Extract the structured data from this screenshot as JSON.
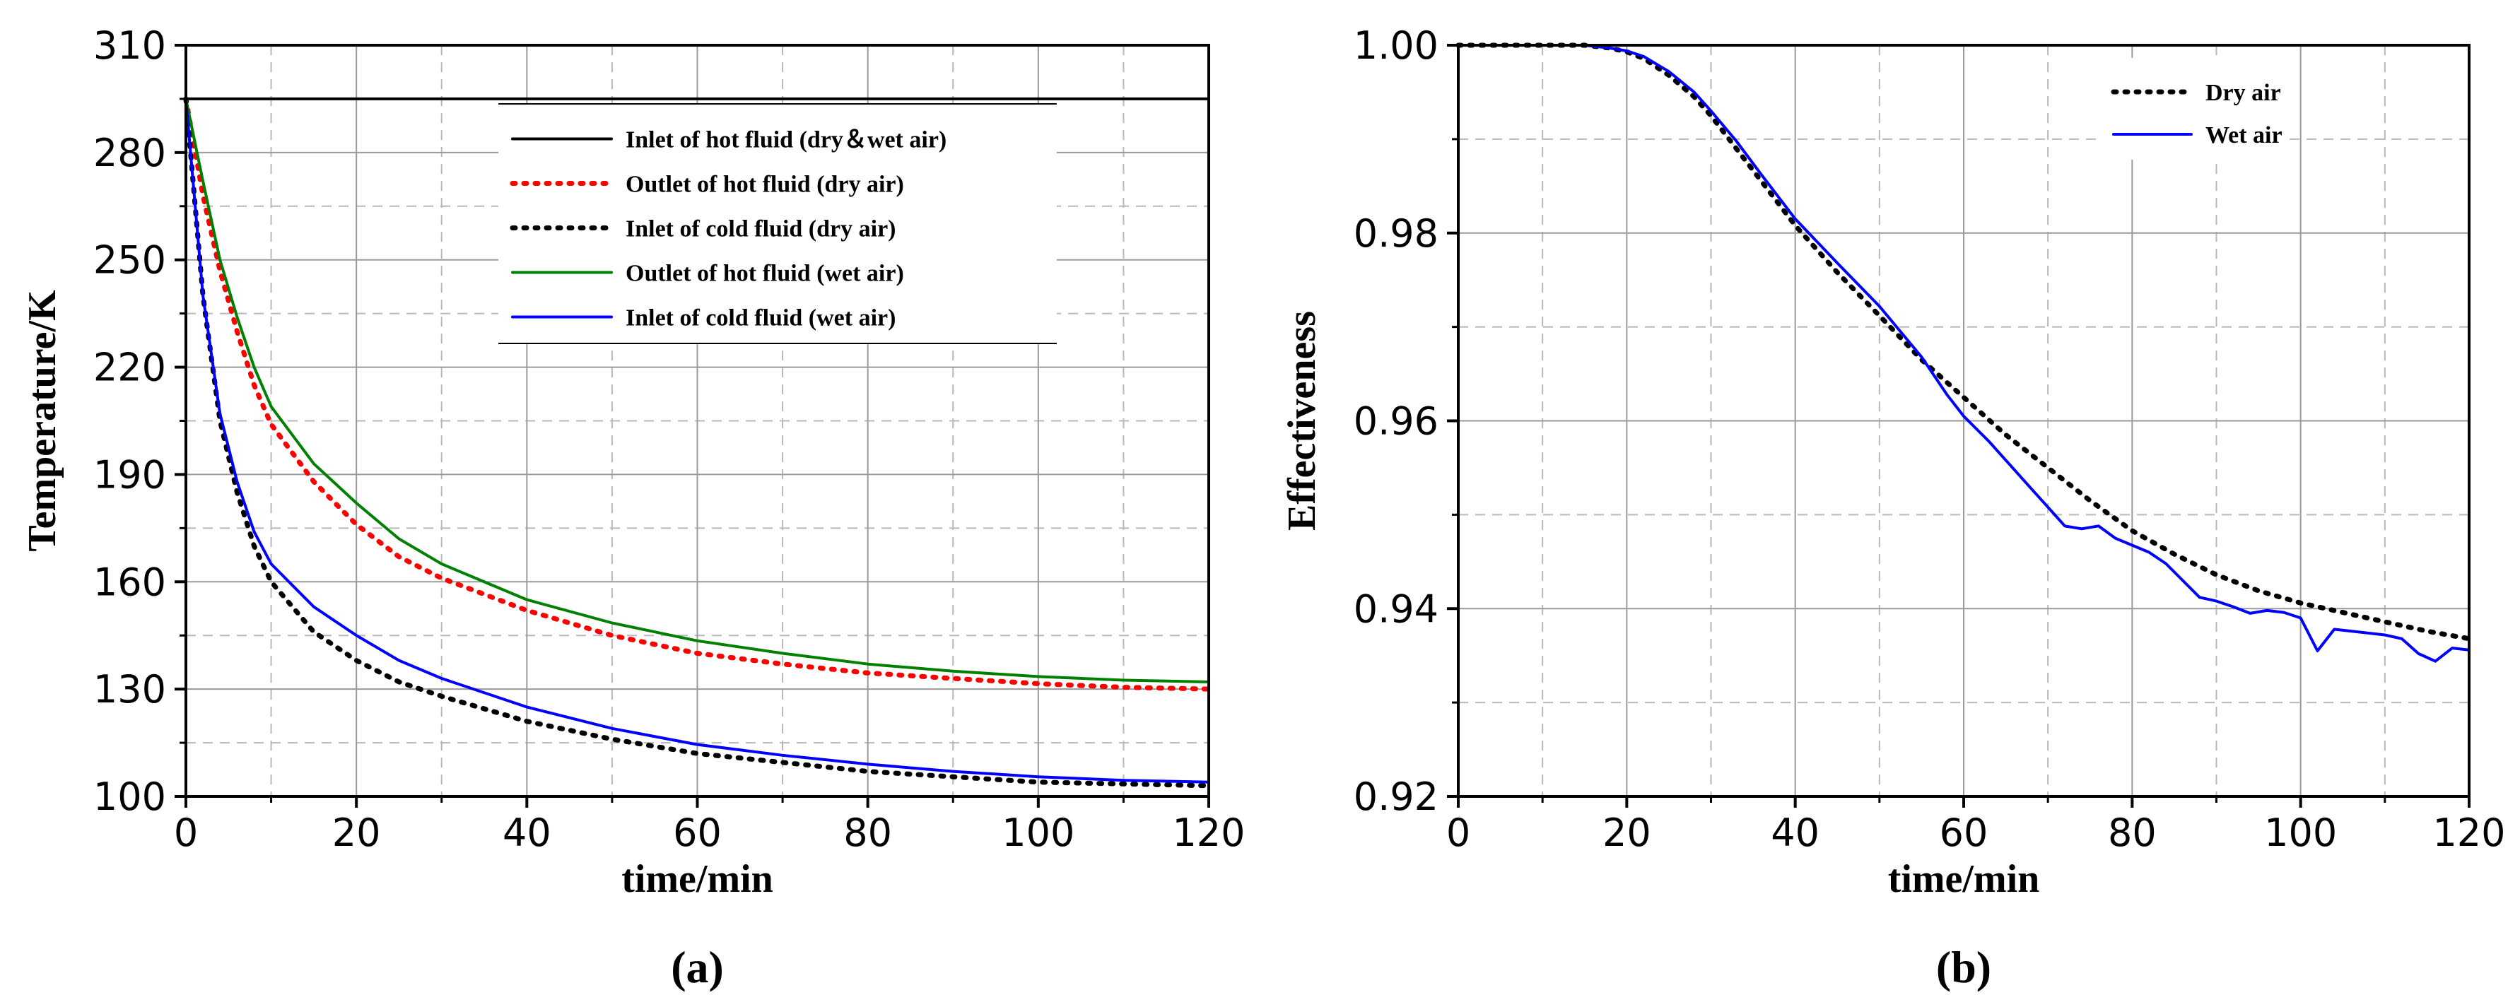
{
  "chart_data": [
    {
      "type": "line",
      "panel_label": "(a)",
      "xlabel": "time/min",
      "ylabel": "Temperature/K",
      "xlim": [
        0,
        120
      ],
      "ylim": [
        100,
        310
      ],
      "xticks": [
        0,
        20,
        40,
        60,
        80,
        100,
        120
      ],
      "yticks": [
        100,
        130,
        160,
        190,
        220,
        250,
        280,
        310
      ],
      "xtick_labels": [
        "0",
        "20",
        "40",
        "60",
        "80",
        "100",
        "120"
      ],
      "ytick_labels": [
        "100",
        "130",
        "160",
        "190",
        "220",
        "250",
        "280",
        "310"
      ],
      "grid": true,
      "legend_position": "top-right",
      "series": [
        {
          "name": "Inlet of hot fluid (dry＆wet air)",
          "color": "#000000",
          "style": "solid",
          "x": [
            0,
            120
          ],
          "y": [
            295,
            295
          ]
        },
        {
          "name": "Outlet of hot fluid (dry air)",
          "color": "#ff0000",
          "style": "dotted",
          "x": [
            0,
            2,
            4,
            6,
            8,
            10,
            15,
            20,
            25,
            30,
            40,
            50,
            60,
            70,
            80,
            90,
            100,
            110,
            120
          ],
          "y": [
            295,
            268,
            247,
            230,
            215,
            204,
            188,
            176,
            167,
            161,
            152,
            145,
            140,
            137,
            134.5,
            133,
            131.5,
            130.5,
            130
          ]
        },
        {
          "name": "Inlet of cold fluid (dry air)",
          "color": "#000000",
          "style": "dotted",
          "x": [
            0,
            2,
            4,
            6,
            8,
            10,
            15,
            20,
            25,
            30,
            40,
            50,
            60,
            70,
            80,
            90,
            100,
            110,
            120
          ],
          "y": [
            295,
            240,
            205,
            185,
            170,
            160,
            146,
            138,
            132,
            128,
            121,
            116,
            112,
            109.5,
            107,
            105.5,
            104,
            103.5,
            103
          ]
        },
        {
          "name": "Outlet of hot fluid (wet air)",
          "color": "#008000",
          "style": "solid",
          "x": [
            0,
            2,
            4,
            6,
            8,
            10,
            15,
            20,
            25,
            30,
            40,
            50,
            60,
            70,
            80,
            90,
            100,
            110,
            120
          ],
          "y": [
            295,
            272,
            250,
            234,
            220,
            209,
            193,
            182,
            172,
            165,
            155,
            148.5,
            143.5,
            140,
            137,
            135,
            133.5,
            132.5,
            132
          ]
        },
        {
          "name": "Inlet of cold fluid (wet air)",
          "color": "#0000ff",
          "style": "solid",
          "x": [
            0,
            2,
            4,
            6,
            8,
            10,
            15,
            20,
            25,
            30,
            40,
            50,
            60,
            70,
            80,
            90,
            100,
            110,
            120
          ],
          "y": [
            295,
            240,
            207,
            188,
            174,
            165,
            153,
            145,
            138,
            133,
            125,
            119,
            114.5,
            111.5,
            109,
            107,
            105.5,
            104.5,
            104
          ]
        }
      ]
    },
    {
      "type": "line",
      "panel_label": "(b)",
      "xlabel": "time/min",
      "ylabel": "Effectiveness",
      "xlim": [
        0,
        120
      ],
      "ylim": [
        0.92,
        1.0
      ],
      "xticks": [
        0,
        20,
        40,
        60,
        80,
        100,
        120
      ],
      "yticks": [
        0.92,
        0.94,
        0.96,
        0.98,
        1.0
      ],
      "xtick_labels": [
        "0",
        "20",
        "40",
        "60",
        "80",
        "100",
        "120"
      ],
      "ytick_labels": [
        "0.92",
        "0.94",
        "0.96",
        "0.98",
        "1.00"
      ],
      "grid": true,
      "legend_position": "top-right",
      "series": [
        {
          "name": "Dry air",
          "color": "#000000",
          "style": "dotted",
          "x": [
            0,
            10,
            15,
            18,
            20,
            22,
            25,
            28,
            30,
            33,
            36,
            40,
            45,
            50,
            55,
            60,
            65,
            70,
            75,
            80,
            85,
            90,
            95,
            100,
            105,
            110,
            115,
            120
          ],
          "y": [
            1.0,
            1.0,
            1.0,
            0.9997,
            0.9993,
            0.9986,
            0.9968,
            0.9945,
            0.9925,
            0.989,
            0.9855,
            0.9808,
            0.9758,
            0.9712,
            0.9665,
            0.9625,
            0.9585,
            0.955,
            0.9515,
            0.9483,
            0.9458,
            0.9436,
            0.9419,
            0.9406,
            0.9396,
            0.9386,
            0.9376,
            0.9368
          ]
        },
        {
          "name": "Wet air",
          "color": "#0000ff",
          "style": "solid",
          "x": [
            0,
            10,
            15,
            18,
            20,
            22,
            25,
            28,
            30,
            33,
            36,
            40,
            45,
            50,
            55,
            58,
            60,
            63,
            66,
            68,
            70,
            72,
            74,
            76,
            78,
            82,
            84,
            86,
            88,
            90,
            92,
            94,
            96,
            98,
            100,
            102,
            104,
            106,
            108,
            110,
            112,
            114,
            116,
            118,
            120
          ],
          "y": [
            1.0,
            1.0,
            1.0,
            0.9997,
            0.9994,
            0.9988,
            0.9972,
            0.995,
            0.993,
            0.9898,
            0.9862,
            0.9815,
            0.9768,
            0.9722,
            0.9668,
            0.9628,
            0.9605,
            0.9578,
            0.9548,
            0.9528,
            0.9508,
            0.9488,
            0.9485,
            0.9488,
            0.9475,
            0.946,
            0.9448,
            0.943,
            0.9412,
            0.9408,
            0.9402,
            0.9395,
            0.9398,
            0.9396,
            0.939,
            0.9355,
            0.9378,
            0.9376,
            0.9374,
            0.9372,
            0.9368,
            0.9352,
            0.9344,
            0.9358,
            0.9356
          ]
        }
      ]
    }
  ]
}
